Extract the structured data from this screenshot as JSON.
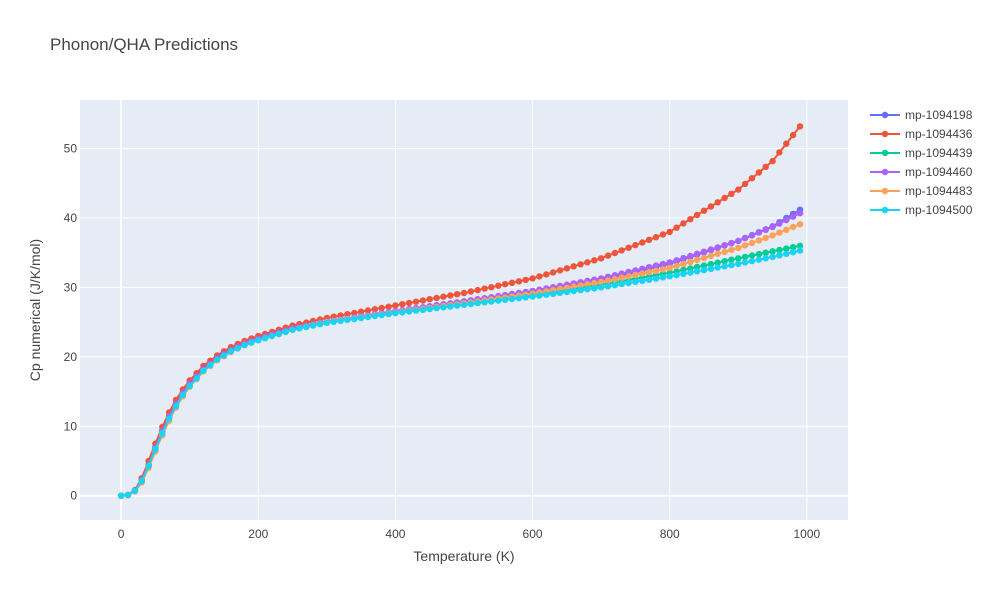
{
  "chart_data": {
    "type": "line",
    "title": "Phonon/QHA Predictions",
    "xlabel": "Temperature (K)",
    "ylabel": "Cp numerical (J/K/mol)",
    "xlim": [
      -60,
      1060
    ],
    "ylim": [
      -3.5,
      57
    ],
    "xticks": [
      0,
      200,
      400,
      600,
      800,
      1000
    ],
    "yticks": [
      0,
      10,
      20,
      30,
      40,
      50
    ],
    "grid": true,
    "legend_position": "top-right",
    "series": [
      {
        "name": "mp-1094198",
        "color": "#636efa",
        "x": [
          0,
          10,
          20,
          30,
          40,
          50,
          60,
          70,
          80,
          90,
          100,
          120,
          140,
          160,
          180,
          200,
          250,
          300,
          400,
          500,
          600,
          700,
          800,
          900,
          950,
          990
        ],
        "y": [
          0,
          0.1,
          0.7,
          2.2,
          4.5,
          7.0,
          9.4,
          11.5,
          13.3,
          14.9,
          16.2,
          18.3,
          19.9,
          21.1,
          22.0,
          22.7,
          24.1,
          25.1,
          26.5,
          27.8,
          29.2,
          31.0,
          33.4,
          36.7,
          38.8,
          41.2
        ]
      },
      {
        "name": "mp-1094436",
        "color": "#ef553b",
        "x": [
          0,
          10,
          20,
          30,
          40,
          50,
          60,
          70,
          80,
          90,
          100,
          120,
          140,
          160,
          180,
          200,
          250,
          300,
          400,
          500,
          600,
          700,
          800,
          900,
          950,
          990
        ],
        "y": [
          0,
          0.1,
          0.8,
          2.5,
          5.0,
          7.5,
          9.9,
          12.0,
          13.8,
          15.3,
          16.6,
          18.7,
          20.2,
          21.4,
          22.3,
          23.0,
          24.5,
          25.6,
          27.4,
          29.2,
          31.3,
          34.2,
          38.0,
          44.1,
          48.2,
          53.2
        ]
      },
      {
        "name": "mp-1094439",
        "color": "#00cc96",
        "x": [
          0,
          10,
          20,
          30,
          40,
          50,
          60,
          70,
          80,
          90,
          100,
          120,
          140,
          160,
          180,
          200,
          250,
          300,
          400,
          500,
          600,
          700,
          800,
          900,
          950,
          990
        ],
        "y": [
          0,
          0.1,
          0.7,
          2.1,
          4.3,
          6.8,
          9.2,
          11.3,
          13.1,
          14.6,
          16.0,
          18.1,
          19.7,
          20.9,
          21.8,
          22.5,
          24.0,
          25.0,
          26.4,
          27.6,
          28.9,
          30.4,
          32.1,
          34.2,
          35.2,
          36.0
        ]
      },
      {
        "name": "mp-1094460",
        "color": "#ab63fa",
        "x": [
          0,
          10,
          20,
          30,
          40,
          50,
          60,
          70,
          80,
          90,
          100,
          120,
          140,
          160,
          180,
          200,
          250,
          300,
          400,
          500,
          600,
          700,
          800,
          900,
          950,
          990
        ],
        "y": [
          0,
          0.1,
          0.7,
          2.2,
          4.4,
          6.9,
          9.3,
          11.4,
          13.2,
          14.8,
          16.1,
          18.2,
          19.8,
          21.0,
          21.9,
          22.6,
          24.1,
          25.1,
          26.6,
          28.0,
          29.5,
          31.3,
          33.6,
          36.7,
          38.7,
          40.7
        ]
      },
      {
        "name": "mp-1094483",
        "color": "#ffa15a",
        "x": [
          0,
          10,
          20,
          30,
          40,
          50,
          60,
          70,
          80,
          90,
          100,
          120,
          140,
          160,
          180,
          200,
          250,
          300,
          400,
          500,
          600,
          700,
          800,
          900,
          950,
          990
        ],
        "y": [
          0,
          0.1,
          0.6,
          1.9,
          4.0,
          6.4,
          8.7,
          10.8,
          12.7,
          14.3,
          15.7,
          17.9,
          19.5,
          20.7,
          21.7,
          22.4,
          23.9,
          25.0,
          26.4,
          27.7,
          29.1,
          30.8,
          32.8,
          35.7,
          37.5,
          39.1
        ]
      },
      {
        "name": "mp-1094500",
        "color": "#19d3f3",
        "x": [
          0,
          10,
          20,
          30,
          40,
          50,
          60,
          70,
          80,
          90,
          100,
          120,
          140,
          160,
          180,
          200,
          250,
          300,
          400,
          500,
          600,
          700,
          800,
          900,
          950,
          990
        ],
        "y": [
          0,
          0.1,
          0.7,
          2.1,
          4.3,
          6.7,
          9.0,
          11.1,
          12.9,
          14.5,
          15.8,
          18.0,
          19.6,
          20.8,
          21.7,
          22.4,
          23.9,
          24.9,
          26.3,
          27.5,
          28.7,
          30.0,
          31.6,
          33.4,
          34.4,
          35.3
        ]
      }
    ]
  }
}
